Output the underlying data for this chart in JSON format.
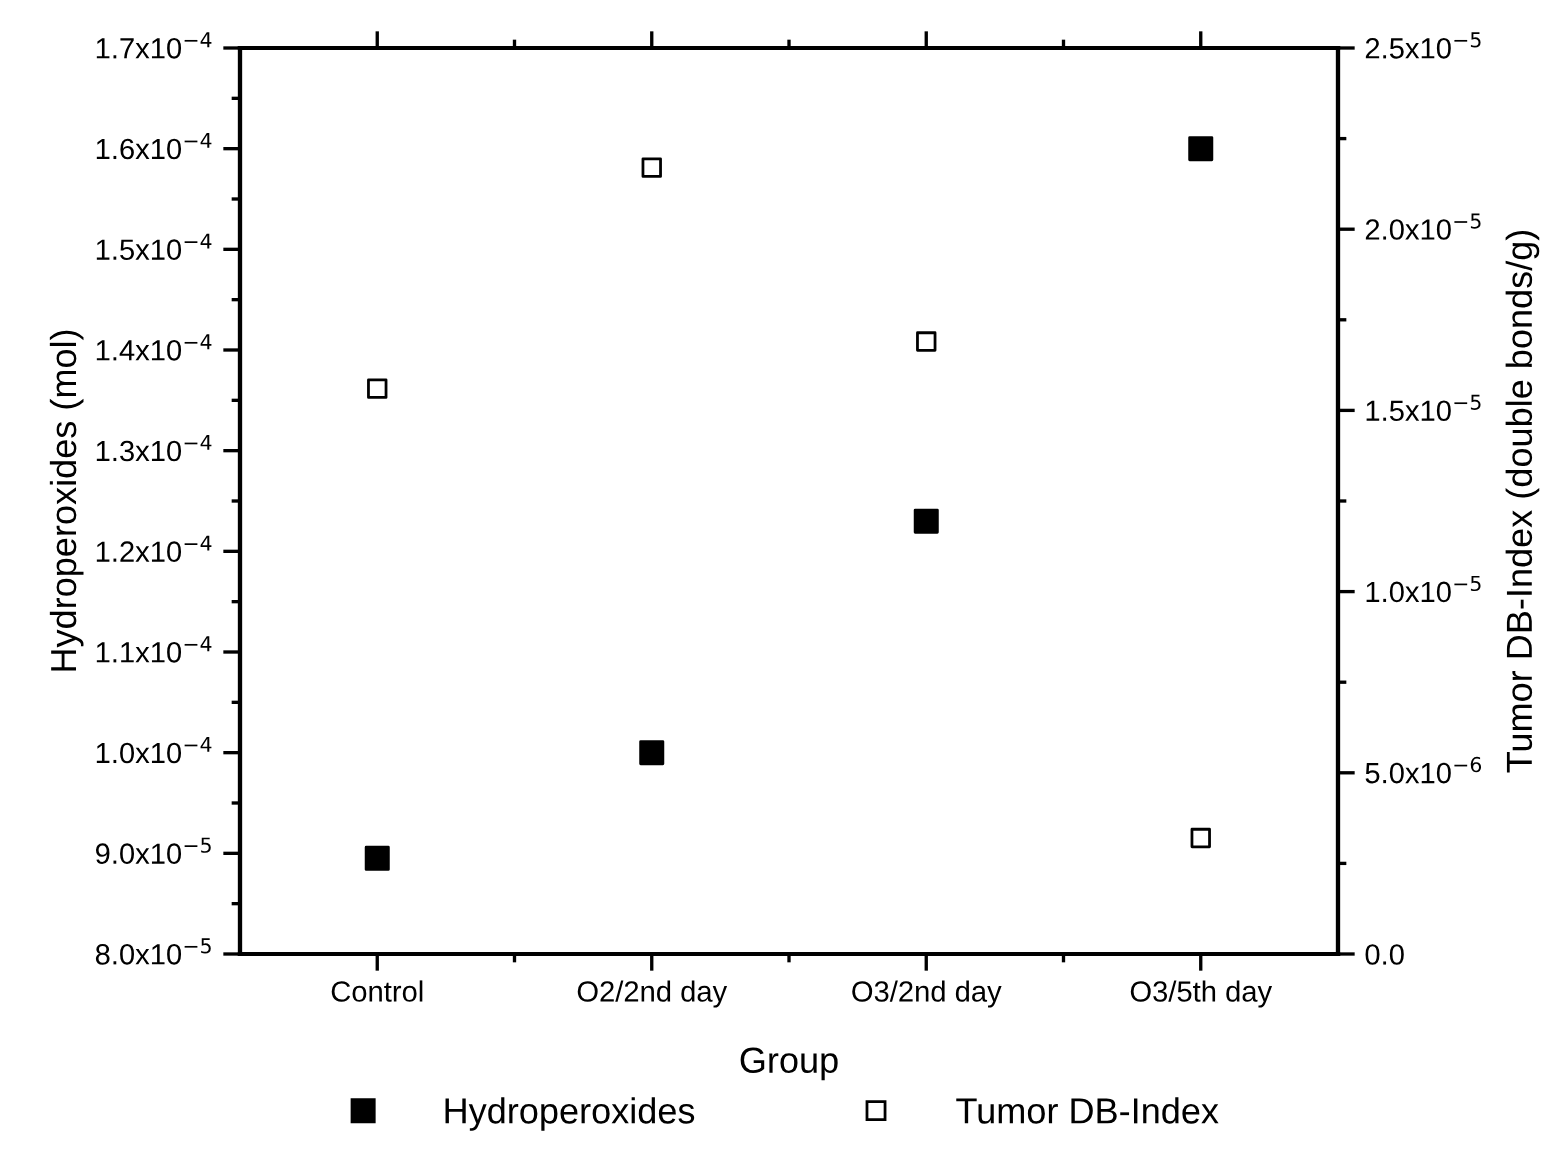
{
  "chart_data": {
    "type": "scatter",
    "xlabel": "Group",
    "ylabel": "Hydroperoxides (mol)",
    "y2label": "Tumor DB-Index (double bonds/g)",
    "categories": [
      "Control",
      "O2/2nd day",
      "O3/2nd day",
      "O3/5th day"
    ],
    "series": [
      {
        "name": "Hydroperoxides",
        "color": "#000000",
        "values": [
          8.95e-05,
          0.0001,
          0.000123,
          0.00016
        ]
      },
      {
        "name": "Tumor DB-Index",
        "color": "#ffffff",
        "values": [
          1.56e-05,
          2.17e-05,
          1.69e-05,
          3.2e-06
        ],
        "axis": "y2"
      }
    ],
    "ylim": [
      8e-05,
      0.00017
    ],
    "yticks": [
      {
        "value": 8e-05,
        "label": "8.0x10$^{−5}$"
      },
      {
        "value": 9e-05,
        "label": "9.0x10$^{−5}$"
      },
      {
        "value": 0.0001,
        "label": "1.0x10$^{−4}$"
      },
      {
        "value": 0.00011,
        "label": "1.1x10$^{−4}$"
      },
      {
        "value": 0.00012,
        "label": "1.2x10$^{−4}$"
      },
      {
        "value": 0.00013,
        "label": "1.3x10$^{−4}$"
      },
      {
        "value": 0.00014,
        "label": "1.4x10$^{−4}$"
      },
      {
        "value": 0.00015,
        "label": "1.5x10$^{−4}$"
      },
      {
        "value": 0.00016,
        "label": "1.6x10$^{−4}$"
      },
      {
        "value": 0.00017,
        "label": "1.7x10$^{−4}$"
      }
    ],
    "y2lim": [
      0,
      2.5e-05
    ],
    "y2ticks": [
      {
        "value": 0,
        "label": "0.0"
      },
      {
        "value": 5e-06,
        "label": "5.0x10$^{−6}$"
      },
      {
        "value": 1e-05,
        "label": "1.0x10$^{−5}$"
      },
      {
        "value": 1.5e-05,
        "label": "1.5x10$^{−5}$"
      },
      {
        "value": 2e-05,
        "label": "2.0x10$^{−5}$"
      },
      {
        "value": 2.5e-05,
        "label": "2.5x10$^{−5}$"
      }
    ],
    "marker": "square",
    "grid": false,
    "legend": "bottom"
  }
}
